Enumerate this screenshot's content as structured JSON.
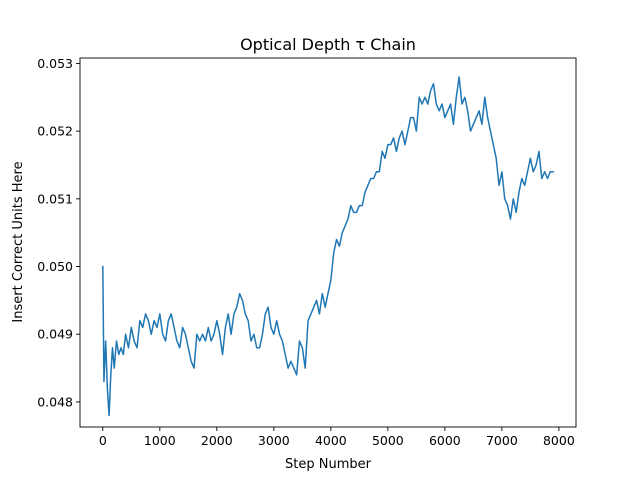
{
  "chart_data": {
    "type": "line",
    "title": "Optical Depth τ Chain",
    "xlabel": "Step Number",
    "ylabel": "Insert Correct Units Here",
    "xlim": [
      -400,
      8300
    ],
    "ylim": [
      0.04763,
      0.05308
    ],
    "xticks": [
      0,
      1000,
      2000,
      3000,
      4000,
      5000,
      6000,
      7000,
      8000
    ],
    "xtick_labels": [
      "0",
      "1000",
      "2000",
      "3000",
      "4000",
      "5000",
      "6000",
      "7000",
      "8000"
    ],
    "yticks": [
      0.048,
      0.049,
      0.05,
      0.051,
      0.052,
      0.053
    ],
    "ytick_labels": [
      "0.048",
      "0.049",
      "0.050",
      "0.051",
      "0.052",
      "0.053"
    ],
    "grid": false,
    "color": "#1f77b4",
    "series": [
      {
        "x": [
          0,
          20,
          50,
          80,
          110,
          140,
          170,
          200,
          240,
          280,
          320,
          360,
          400,
          450,
          500,
          550,
          600,
          650,
          700,
          750,
          800,
          850,
          900,
          950,
          1000,
          1050,
          1100,
          1150,
          1200,
          1250,
          1300,
          1350,
          1400,
          1450,
          1500,
          1550,
          1600,
          1650,
          1700,
          1750,
          1800,
          1850,
          1900,
          1950,
          2000,
          2050,
          2100,
          2150,
          2200,
          2250,
          2300,
          2350,
          2400,
          2450,
          2500,
          2550,
          2600,
          2650,
          2700,
          2750,
          2800,
          2850,
          2900,
          2950,
          3000,
          3050,
          3100,
          3150,
          3200,
          3250,
          3300,
          3350,
          3400,
          3450,
          3500,
          3550,
          3600,
          3650,
          3700,
          3750,
          3800,
          3850,
          3900,
          3950,
          4000,
          4050,
          4100,
          4150,
          4200,
          4250,
          4300,
          4350,
          4400,
          4450,
          4500,
          4550,
          4600,
          4650,
          4700,
          4750,
          4800,
          4850,
          4900,
          4950,
          5000,
          5050,
          5100,
          5150,
          5200,
          5250,
          5300,
          5350,
          5400,
          5450,
          5500,
          5550,
          5600,
          5650,
          5700,
          5750,
          5800,
          5850,
          5900,
          5950,
          6000,
          6050,
          6100,
          6150,
          6200,
          6250,
          6300,
          6350,
          6400,
          6450,
          6500,
          6550,
          6600,
          6650,
          6700,
          6750,
          6800,
          6850,
          6900,
          6950,
          7000,
          7050,
          7100,
          7150,
          7200,
          7250,
          7300,
          7350,
          7400,
          7450,
          7500,
          7550,
          7600,
          7650,
          7700,
          7750,
          7800,
          7850,
          7900
        ],
        "y": [
          0.05,
          0.0483,
          0.0489,
          0.0482,
          0.0478,
          0.0484,
          0.0488,
          0.0485,
          0.0489,
          0.0487,
          0.0488,
          0.0487,
          0.049,
          0.0488,
          0.0491,
          0.0489,
          0.0488,
          0.0492,
          0.0491,
          0.0493,
          0.0492,
          0.049,
          0.0492,
          0.0491,
          0.0493,
          0.049,
          0.0489,
          0.0492,
          0.0493,
          0.0491,
          0.0489,
          0.0488,
          0.0491,
          0.049,
          0.0488,
          0.0486,
          0.0485,
          0.049,
          0.0489,
          0.049,
          0.0489,
          0.0491,
          0.0489,
          0.049,
          0.0492,
          0.049,
          0.0487,
          0.0491,
          0.0493,
          0.049,
          0.0493,
          0.0494,
          0.0496,
          0.0495,
          0.0493,
          0.0492,
          0.0489,
          0.049,
          0.0488,
          0.0488,
          0.049,
          0.0493,
          0.0494,
          0.0491,
          0.049,
          0.0492,
          0.049,
          0.0489,
          0.0487,
          0.0485,
          0.0486,
          0.0485,
          0.0484,
          0.0489,
          0.0488,
          0.0485,
          0.0492,
          0.0493,
          0.0494,
          0.0495,
          0.0493,
          0.0496,
          0.0494,
          0.0496,
          0.0498,
          0.0502,
          0.0504,
          0.0503,
          0.0505,
          0.0506,
          0.0507,
          0.0509,
          0.0508,
          0.0508,
          0.0509,
          0.0509,
          0.0511,
          0.0512,
          0.0513,
          0.0513,
          0.0514,
          0.0514,
          0.0517,
          0.0516,
          0.0518,
          0.0518,
          0.0519,
          0.0517,
          0.0519,
          0.052,
          0.0518,
          0.052,
          0.0522,
          0.0522,
          0.052,
          0.0525,
          0.0524,
          0.0525,
          0.0524,
          0.0526,
          0.0527,
          0.0524,
          0.0523,
          0.0524,
          0.0522,
          0.0523,
          0.0524,
          0.0521,
          0.0525,
          0.0528,
          0.0524,
          0.0525,
          0.0523,
          0.052,
          0.0521,
          0.0522,
          0.0523,
          0.0521,
          0.0525,
          0.0522,
          0.052,
          0.0518,
          0.0516,
          0.0512,
          0.0514,
          0.051,
          0.0509,
          0.0507,
          0.051,
          0.0508,
          0.0511,
          0.0513,
          0.0512,
          0.0514,
          0.0516,
          0.0514,
          0.0515,
          0.0517,
          0.0513,
          0.0514,
          0.0513,
          0.0514,
          0.0514
        ]
      }
    ]
  }
}
